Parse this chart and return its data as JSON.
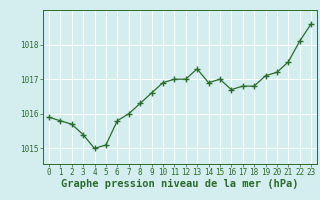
{
  "x": [
    0,
    1,
    2,
    3,
    4,
    5,
    6,
    7,
    8,
    9,
    10,
    11,
    12,
    13,
    14,
    15,
    16,
    17,
    18,
    19,
    20,
    21,
    22,
    23
  ],
  "y": [
    1015.9,
    1015.8,
    1015.7,
    1015.4,
    1015.0,
    1015.1,
    1015.8,
    1016.0,
    1016.3,
    1016.6,
    1016.9,
    1017.0,
    1017.0,
    1017.3,
    1016.9,
    1017.0,
    1016.7,
    1016.8,
    1016.8,
    1017.1,
    1017.2,
    1017.5,
    1018.1,
    1018.6
  ],
  "ylim": [
    1014.55,
    1019.0
  ],
  "yticks": [
    1015,
    1016,
    1017,
    1018
  ],
  "xticks": [
    0,
    1,
    2,
    3,
    4,
    5,
    6,
    7,
    8,
    9,
    10,
    11,
    12,
    13,
    14,
    15,
    16,
    17,
    18,
    19,
    20,
    21,
    22,
    23
  ],
  "xlabel": "Graphe pression niveau de la mer (hPa)",
  "line_color": "#2d6a2d",
  "marker": "+",
  "marker_size": 4,
  "bg_color": "#d4eef0",
  "grid_color": "#ffffff",
  "tick_label_fontsize": 5.5,
  "xlabel_fontsize": 7.5
}
